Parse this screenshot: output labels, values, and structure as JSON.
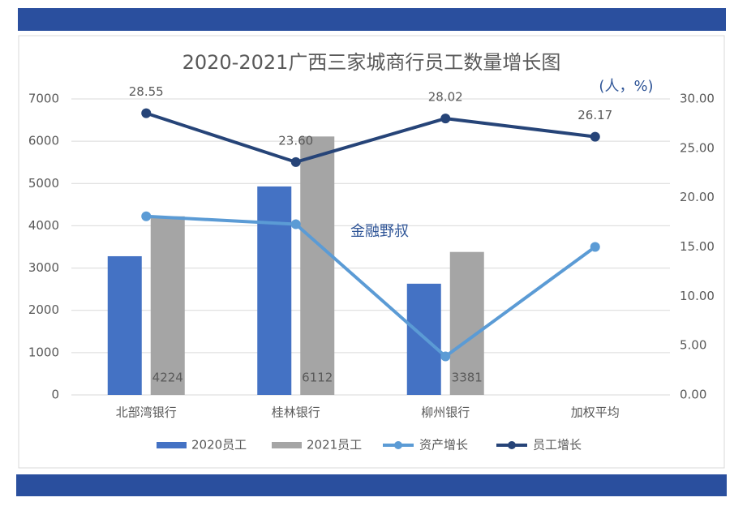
{
  "chart_data": {
    "type": "bar-line",
    "title": "2020-2021广西三家城商行员工数量增长图",
    "unit_label": "(人，%)",
    "watermark": "金融野叔",
    "categories": [
      "北部湾银行",
      "桂林银行",
      "柳州银行",
      "加权平均"
    ],
    "series": [
      {
        "name": "2020员工",
        "type": "bar",
        "color": "#4472c4",
        "values": [
          3280,
          4930,
          2630,
          null
        ]
      },
      {
        "name": "2021员工",
        "type": "bar",
        "color": "#a5a5a5",
        "values": [
          4224,
          6112,
          3381,
          null
        ]
      },
      {
        "name": "资产增长",
        "type": "line",
        "axis": "y2",
        "color": "#5b9bd5",
        "values": [
          18.1,
          17.3,
          3.9,
          15.0
        ]
      },
      {
        "name": "员工增长",
        "type": "line",
        "axis": "y2",
        "color": "#264478",
        "values": [
          28.55,
          23.6,
          28.02,
          26.17
        ],
        "value_labels": [
          "28.55",
          "23.60",
          "28.02",
          "26.17"
        ]
      }
    ],
    "ylim": [
      0,
      7000
    ],
    "yticks": [
      0,
      1000,
      2000,
      3000,
      4000,
      5000,
      6000,
      7000
    ],
    "y2lim": [
      0,
      30
    ],
    "y2ticks": [
      {
        "value": 0,
        "label": "0.00"
      },
      {
        "value": 5,
        "label": "5.00"
      },
      {
        "value": 10,
        "label": "10.00"
      },
      {
        "value": 15,
        "label": "15.00"
      },
      {
        "value": 20,
        "label": "20.00"
      },
      {
        "value": 25,
        "label": "25.00"
      },
      {
        "value": 30,
        "label": "30.00"
      }
    ],
    "grid": true
  }
}
